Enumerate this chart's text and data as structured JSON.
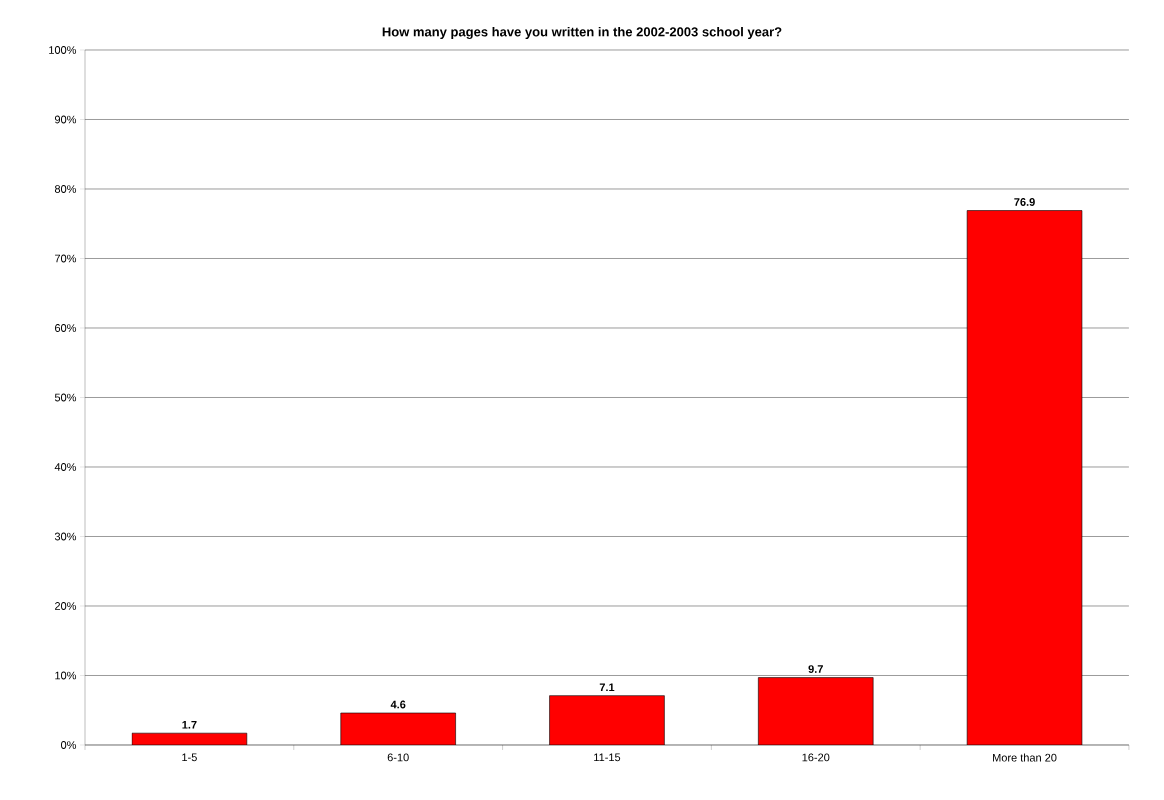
{
  "chart_data": {
    "type": "bar",
    "title": "How many pages have you written in the 2002-2003 school year?",
    "categories": [
      "1-5",
      "6-10",
      "11-15",
      "16-20",
      "More than 20"
    ],
    "values": [
      1.7,
      4.6,
      7.1,
      9.7,
      76.9
    ],
    "color": "#ff0000",
    "ylim": [
      0,
      100
    ],
    "yticks": [
      {
        "value": 0,
        "label": "0%"
      },
      {
        "value": 10,
        "label": "10%"
      },
      {
        "value": 20,
        "label": "20%"
      },
      {
        "value": 30,
        "label": "30%"
      },
      {
        "value": 40,
        "label": "40%"
      },
      {
        "value": 50,
        "label": "50%"
      },
      {
        "value": 60,
        "label": "60%"
      },
      {
        "value": 70,
        "label": "70%"
      },
      {
        "value": 80,
        "label": "80%"
      },
      {
        "value": 90,
        "label": "90%"
      },
      {
        "value": 100,
        "label": "100%"
      }
    ],
    "grid": "y",
    "data_labels": true
  }
}
